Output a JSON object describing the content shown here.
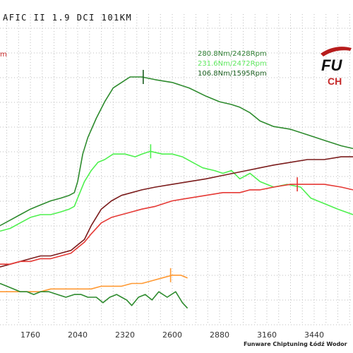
{
  "header": {
    "title": "AFIC II 1.9 DCI 101KM",
    "unit_label": "m"
  },
  "readouts": [
    {
      "text": "280.8Nm/2428Rpm",
      "color": "#2e7d32"
    },
    {
      "text": "231.6Nm/2472Rpm",
      "color": "#5ee85e"
    },
    {
      "text": "106.8Nm/1595Rpm",
      "color": "#1b5e20"
    }
  ],
  "logo": {
    "line1": "FU",
    "line2": "CH"
  },
  "footer": "Funware Chiptuning Łódź Wodor",
  "chart_data": {
    "type": "line",
    "title": "",
    "xlabel": "",
    "ylabel": "",
    "xlim": [
      1580,
      3670
    ],
    "ylim": [
      0,
      100
    ],
    "grid": true,
    "x_ticks": [
      1760,
      2040,
      2320,
      2600,
      2880,
      3160,
      3440
    ],
    "series": [
      {
        "color": "#2e8b2e",
        "x": [
          1580,
          1640,
          1700,
          1760,
          1800,
          1840,
          1880,
          1940,
          1990,
          2020,
          2040,
          2070,
          2100,
          2150,
          2200,
          2250,
          2300,
          2350,
          2420,
          2500,
          2600,
          2700,
          2800,
          2880,
          2950,
          3000,
          3060,
          3120,
          3200,
          3300,
          3400,
          3500,
          3600,
          3670
        ],
        "values": [
          36,
          38,
          40,
          42,
          43,
          44,
          45,
          46,
          47,
          48,
          52,
          62,
          68,
          75,
          81,
          86,
          88,
          90,
          90,
          89,
          88,
          86,
          83,
          81,
          80,
          79,
          77,
          74,
          72,
          71,
          69,
          67,
          65,
          64
        ]
      },
      {
        "color": "#4ef04e",
        "x": [
          1580,
          1640,
          1700,
          1760,
          1820,
          1880,
          1940,
          1990,
          2020,
          2040,
          2080,
          2120,
          2160,
          2200,
          2250,
          2320,
          2380,
          2420,
          2470,
          2540,
          2600,
          2660,
          2720,
          2780,
          2850,
          2900,
          2950,
          3000,
          3060,
          3120,
          3200,
          3280,
          3360,
          3420,
          3500,
          3580,
          3670
        ],
        "values": [
          34,
          35,
          37,
          39,
          40,
          40,
          41,
          42,
          43,
          46,
          52,
          56,
          59,
          60,
          62,
          62,
          61,
          62,
          63,
          62,
          62,
          61,
          59,
          57,
          56,
          55,
          56,
          53,
          55,
          52,
          50,
          51,
          50,
          46,
          44,
          42,
          40
        ]
      },
      {
        "color": "#7b1c1c",
        "x": [
          1580,
          1640,
          1700,
          1760,
          1820,
          1880,
          1940,
          2000,
          2040,
          2080,
          2120,
          2180,
          2240,
          2300,
          2360,
          2420,
          2500,
          2600,
          2700,
          2800,
          2880,
          2960,
          3040,
          3120,
          3200,
          3300,
          3400,
          3500,
          3600,
          3670
        ],
        "values": [
          21,
          22,
          23,
          24,
          25,
          25,
          26,
          27,
          29,
          31,
          36,
          42,
          45,
          47,
          48,
          49,
          50,
          51,
          52,
          53,
          54,
          55,
          56,
          57,
          58,
          59,
          60,
          60,
          61,
          61
        ]
      },
      {
        "color": "#e53935",
        "x": [
          1580,
          1640,
          1700,
          1760,
          1820,
          1880,
          1940,
          2000,
          2040,
          2080,
          2120,
          2180,
          2240,
          2300,
          2360,
          2420,
          2500,
          2600,
          2700,
          2800,
          2900,
          3000,
          3060,
          3120,
          3200,
          3300,
          3400,
          3500,
          3600,
          3670
        ],
        "values": [
          22,
          22,
          23,
          23,
          24,
          24,
          25,
          26,
          28,
          30,
          33,
          37,
          39,
          40,
          41,
          42,
          43,
          45,
          46,
          47,
          48,
          48,
          49,
          49,
          50,
          51,
          51,
          51,
          50,
          49
        ]
      },
      {
        "color": "#ff9933",
        "x": [
          1580,
          1640,
          1700,
          1760,
          1820,
          1880,
          1940,
          2000,
          2060,
          2120,
          2180,
          2240,
          2300,
          2360,
          2420,
          2480,
          2540,
          2600,
          2650,
          2690
        ],
        "values": [
          12,
          12,
          12,
          12,
          12,
          13,
          13,
          13,
          13,
          13,
          14,
          14,
          14,
          15,
          15,
          16,
          17,
          18,
          18,
          17
        ]
      },
      {
        "color": "#2e8b2e",
        "x": [
          1580,
          1620,
          1660,
          1700,
          1740,
          1780,
          1820,
          1870,
          1920,
          1970,
          2020,
          2060,
          2100,
          2150,
          2190,
          2230,
          2270,
          2300,
          2330,
          2360,
          2400,
          2440,
          2480,
          2520,
          2570,
          2620,
          2660,
          2690
        ],
        "values": [
          15,
          14,
          13,
          12,
          12,
          11,
          12,
          12,
          11,
          10,
          11,
          11,
          10,
          10,
          8,
          10,
          11,
          10,
          9,
          7,
          10,
          11,
          9,
          12,
          10,
          12,
          8,
          6
        ]
      }
    ],
    "markers": [
      {
        "x": 2428,
        "value": 90,
        "color": "#1b5e20"
      },
      {
        "x": 2472,
        "value": 63,
        "color": "#4ef04e"
      },
      {
        "x": 3340,
        "value": 51,
        "color": "#e53935"
      },
      {
        "x": 2590,
        "value": 18,
        "color": "#ff9933"
      }
    ]
  }
}
